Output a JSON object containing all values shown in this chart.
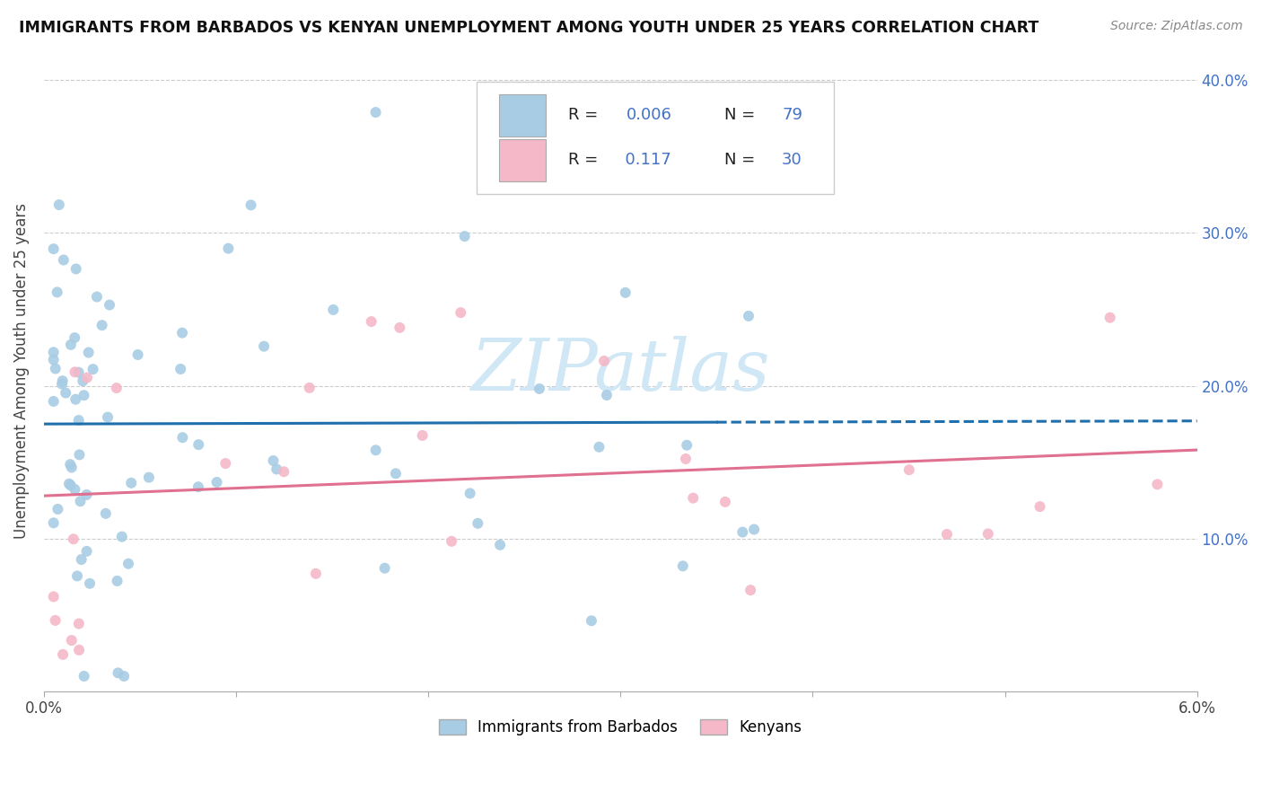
{
  "title": "IMMIGRANTS FROM BARBADOS VS KENYAN UNEMPLOYMENT AMONG YOUTH UNDER 25 YEARS CORRELATION CHART",
  "source": "Source: ZipAtlas.com",
  "ylabel": "Unemployment Among Youth under 25 years",
  "xlim": [
    0.0,
    0.06
  ],
  "ylim": [
    0.0,
    0.42
  ],
  "x_tick_labels": [
    "0.0%",
    "",
    "",
    "",
    "",
    "",
    "6.0%"
  ],
  "y_tick_labels": [
    "",
    "10.0%",
    "20.0%",
    "30.0%",
    "40.0%"
  ],
  "blue_color": "#a8cce4",
  "pink_color": "#f4b8c8",
  "blue_line_color": "#1f6fad",
  "pink_line_color": "#e07090",
  "watermark_color": "#d0e8f5",
  "blue_trend_y0": 0.175,
  "blue_trend_y1": 0.177,
  "pink_trend_y0": 0.128,
  "pink_trend_y1": 0.158
}
